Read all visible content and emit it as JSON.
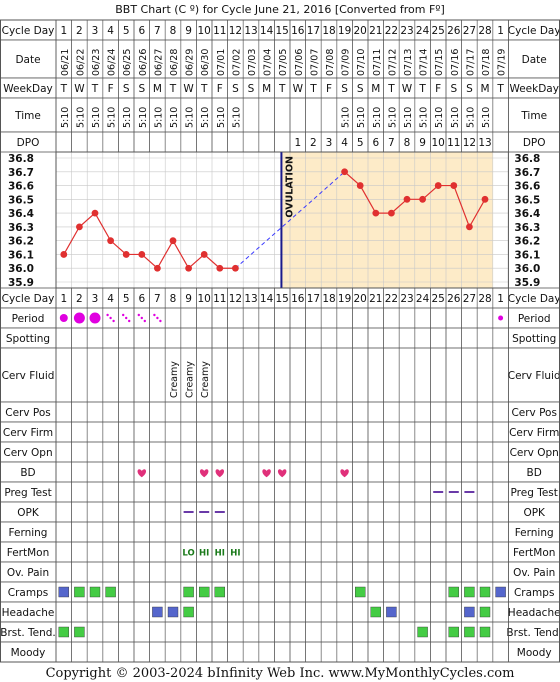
{
  "chart_data": {
    "type": "line",
    "title": "BBT Chart (C º) for Cycle June 21, 2016  [Converted from Fº]",
    "cycle_days": [
      1,
      2,
      3,
      4,
      5,
      6,
      7,
      8,
      9,
      10,
      11,
      12,
      13,
      14,
      15,
      16,
      17,
      18,
      19,
      20,
      21,
      22,
      23,
      24,
      25,
      26,
      27,
      28,
      1
    ],
    "dates": [
      "06/21",
      "06/22",
      "06/23",
      "06/24",
      "06/25",
      "06/26",
      "06/27",
      "06/28",
      "06/29",
      "06/30",
      "07/01",
      "07/02",
      "07/03",
      "07/04",
      "07/05",
      "07/06",
      "07/07",
      "07/08",
      "07/09",
      "07/10",
      "07/11",
      "07/12",
      "07/13",
      "07/14",
      "07/15",
      "07/16",
      "07/17",
      "07/18",
      "07/19"
    ],
    "weekdays": [
      "T",
      "W",
      "T",
      "F",
      "S",
      "S",
      "M",
      "T",
      "W",
      "T",
      "F",
      "S",
      "S",
      "M",
      "T",
      "W",
      "T",
      "F",
      "S",
      "S",
      "M",
      "T",
      "W",
      "T",
      "F",
      "S",
      "S",
      "M",
      "T"
    ],
    "times": [
      "5:10",
      "5:10",
      "5:10",
      "5:10",
      "5:10",
      "5:10",
      "5:10",
      "5:10",
      "5:10",
      "5:10",
      "5:10",
      "5:10",
      "",
      "",
      "",
      "",
      "",
      "",
      "5:10",
      "5:10",
      "5:10",
      "5:10",
      "5:10",
      "5:10",
      "5:10",
      "5:10",
      "5:10",
      "5:10",
      ""
    ],
    "dpo": [
      "",
      "",
      "",
      "",
      "",
      "",
      "",
      "",
      "",
      "",
      "",
      "",
      "",
      "",
      "",
      "1",
      "2",
      "3",
      "4",
      "5",
      "6",
      "7",
      "8",
      "9",
      "10",
      "11",
      "12",
      "13",
      ""
    ],
    "temps": [
      36.1,
      36.3,
      36.4,
      36.2,
      36.1,
      36.1,
      36.0,
      36.2,
      36.0,
      36.1,
      36.0,
      36.0,
      null,
      null,
      null,
      null,
      null,
      null,
      36.7,
      36.6,
      36.4,
      36.4,
      36.5,
      36.5,
      36.6,
      36.6,
      36.3,
      36.5,
      null
    ],
    "y_ticks": [
      "36.8",
      "36.7",
      "36.6",
      "36.5",
      "36.4",
      "36.3",
      "36.2",
      "36.1",
      "36.0",
      "35.9"
    ],
    "ylim": [
      35.9,
      36.8
    ],
    "ovulation_day": 15,
    "ovulation_label": "OVULATION",
    "colors": {
      "temp_line": "#e03030",
      "temp_point": "#e03030",
      "luteal_fill": "#fdebc8",
      "ovulation_line": "#1a1a8c",
      "bridge": "#3a3aff",
      "period": "#e000e0",
      "heart": "#e0307a",
      "cramp_green": "#44cc44",
      "headache_blue": "#5566cc",
      "dash_purple": "#6a3aa8"
    }
  },
  "labels": {
    "cycle_day": "Cycle Day",
    "date": "Date",
    "weekday": "WeekDay",
    "time": "Time",
    "dpo": "DPO",
    "period": "Period",
    "spotting": "Spotting",
    "cerv_fluid": "Cerv Fluid",
    "cerv_pos": "Cerv Pos",
    "cerv_firm": "Cerv Firm",
    "cerv_opn": "Cerv Opn",
    "bd": "BD",
    "preg_test": "Preg Test",
    "opk": "OPK",
    "ferning": "Ferning",
    "fertmon": "FertMon",
    "ov_pain": "Ov. Pain",
    "cramps": "Cramps",
    "headache": "Headache",
    "brst_tend": "Brst. Tend.",
    "moody": "Moody"
  },
  "period": [
    {
      "day": 1,
      "size": "small"
    },
    {
      "day": 2,
      "size": "large"
    },
    {
      "day": 3,
      "size": "large"
    },
    {
      "day": 4,
      "size": "spot"
    },
    {
      "day": 5,
      "size": "spot"
    },
    {
      "day": 6,
      "size": "spot"
    },
    {
      "day": 7,
      "size": "spot"
    },
    {
      "day": 29,
      "size": "tiny"
    }
  ],
  "cerv_fluid": [
    {
      "day": 8,
      "text": "Creamy"
    },
    {
      "day": 9,
      "text": "Creamy"
    },
    {
      "day": 10,
      "text": "Creamy"
    }
  ],
  "bd_days": [
    6,
    10,
    11,
    14,
    15,
    19
  ],
  "preg_test_days": [
    25,
    26,
    27
  ],
  "opk_days": [
    9,
    10,
    11
  ],
  "fertmon": [
    {
      "day": 9,
      "text": "LO"
    },
    {
      "day": 10,
      "text": "HI"
    },
    {
      "day": 11,
      "text": "HI"
    },
    {
      "day": 12,
      "text": "HI"
    }
  ],
  "cramps": [
    {
      "day": 1,
      "color": "blue"
    },
    {
      "day": 2,
      "color": "green"
    },
    {
      "day": 3,
      "color": "green"
    },
    {
      "day": 4,
      "color": "green"
    },
    {
      "day": 9,
      "color": "green"
    },
    {
      "day": 10,
      "color": "green"
    },
    {
      "day": 11,
      "color": "green"
    },
    {
      "day": 20,
      "color": "green"
    },
    {
      "day": 26,
      "color": "green"
    },
    {
      "day": 27,
      "color": "green"
    },
    {
      "day": 28,
      "color": "green"
    },
    {
      "day": 29,
      "color": "blue"
    }
  ],
  "headache": [
    {
      "day": 7,
      "color": "blue"
    },
    {
      "day": 8,
      "color": "blue"
    },
    {
      "day": 9,
      "color": "green"
    },
    {
      "day": 21,
      "color": "green"
    },
    {
      "day": 22,
      "color": "blue"
    },
    {
      "day": 27,
      "color": "blue"
    },
    {
      "day": 28,
      "color": "green"
    }
  ],
  "brst_tend": [
    {
      "day": 1,
      "color": "green"
    },
    {
      "day": 2,
      "color": "green"
    },
    {
      "day": 24,
      "color": "green"
    },
    {
      "day": 26,
      "color": "green"
    },
    {
      "day": 27,
      "color": "green"
    },
    {
      "day": 28,
      "color": "green"
    }
  ],
  "footer": "Copyright © 2003-2024 bInfinity Web Inc.    www.MyMonthlyCycles.com"
}
